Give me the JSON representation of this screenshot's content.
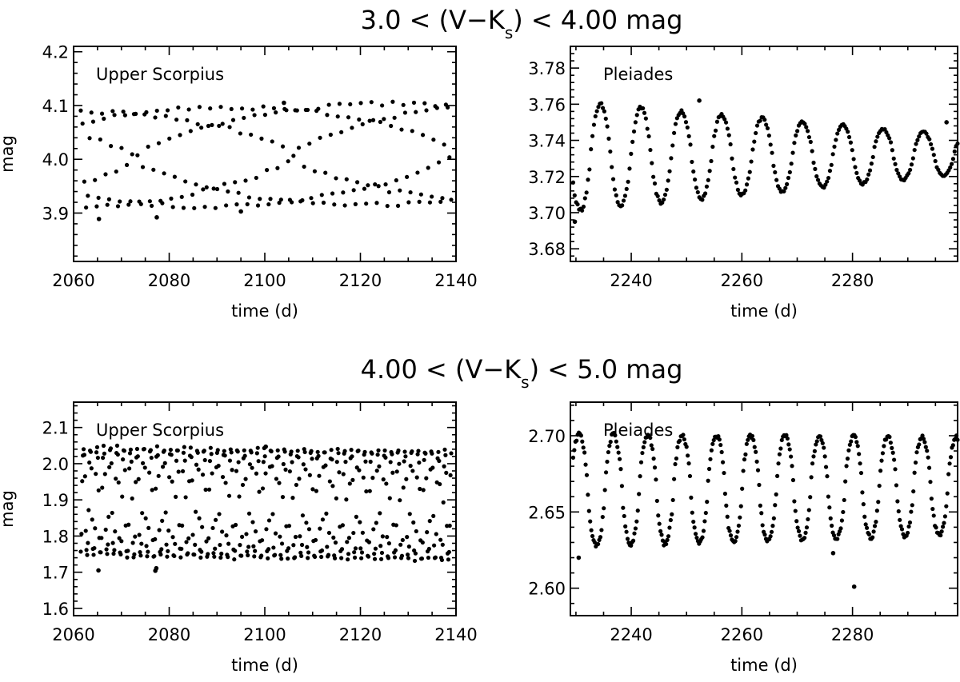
{
  "row_titles": [
    {
      "pre": "3.0 < (V−K",
      "sub": "s",
      "post": ") < 4.00 mag"
    },
    {
      "pre": "4.00 < (V−K",
      "sub": "s",
      "post": ") < 5.0 mag"
    }
  ],
  "chart_data": [
    {
      "type": "scatter",
      "title": "Upper Scorpius",
      "xlabel": "time (d)",
      "ylabel": "mag",
      "xlim": [
        2060,
        2140
      ],
      "ylim": [
        3.81,
        4.21
      ],
      "xticks": [
        2060,
        2080,
        2100,
        2120,
        2140
      ],
      "xtick_labels": [
        "2060",
        "2080",
        "2100",
        "2120",
        "2140"
      ],
      "yticks": [
        3.9,
        4.0,
        4.1,
        4.2
      ],
      "ytick_labels": [
        "3.9",
        "4.0",
        "4.1",
        "4.2"
      ],
      "pattern": {
        "t_start": 2061.5,
        "t_end": 2139,
        "n": 210,
        "center_start": 4.0,
        "center_end": 4.012,
        "amp_start": 0.09,
        "amp_end": 0.095,
        "period": 2.25,
        "bias": 0.6
      },
      "extra_points": [
        [
          2065.3,
          3.889
        ],
        [
          2077.4,
          3.892
        ],
        [
          2095.0,
          3.903
        ],
        [
          2104.0,
          4.105
        ]
      ]
    },
    {
      "type": "scatter",
      "title": "Pleiades",
      "xlabel": "time (d)",
      "ylabel": "",
      "xlim": [
        2229,
        2299
      ],
      "ylim": [
        3.673,
        3.792
      ],
      "xticks": [
        2240,
        2260,
        2280
      ],
      "xtick_labels": [
        "2240",
        "2260",
        "2280"
      ],
      "yticks": [
        3.68,
        3.7,
        3.72,
        3.74,
        3.76,
        3.78
      ],
      "ytick_labels": [
        "3.68",
        "3.70",
        "3.72",
        "3.74",
        "3.76",
        "3.78"
      ],
      "pattern": {
        "t_start": 2229.5,
        "t_end": 2299,
        "n": 260,
        "center_start": 3.731,
        "center_end": 3.732,
        "amp_start": 0.03,
        "amp_end": 0.011,
        "period": 7.3,
        "bias": 0.3
      },
      "extra_points": [
        [
          2229.8,
          3.695
        ],
        [
          2252.3,
          3.762
        ],
        [
          2297.0,
          3.75
        ]
      ]
    },
    {
      "type": "scatter",
      "title": "Upper Scorpius",
      "xlabel": "time (d)",
      "ylabel": "mag",
      "xlim": [
        2060,
        2140
      ],
      "ylim": [
        1.58,
        2.17
      ],
      "xticks": [
        2060,
        2080,
        2100,
        2120,
        2140
      ],
      "xtick_labels": [
        "2060",
        "2080",
        "2100",
        "2120",
        "2140"
      ],
      "yticks": [
        1.6,
        1.7,
        1.8,
        1.9,
        2.0,
        2.1
      ],
      "ytick_labels": [
        "1.6",
        "1.7",
        "1.8",
        "1.9",
        "2.0",
        "2.1"
      ],
      "pattern": {
        "t_start": 2061.5,
        "t_end": 2139,
        "n": 520,
        "center_start": 1.895,
        "center_end": 1.885,
        "amp_start": 0.15,
        "amp_end": 0.15,
        "period": 1.4,
        "bias": 0.65
      },
      "extra_points": [
        [
          2065.2,
          1.705
        ],
        [
          2077.1,
          1.704
        ],
        [
          2077.3,
          1.711
        ],
        [
          2100.2,
          2.047
        ]
      ]
    },
    {
      "type": "scatter",
      "title": "Pleiades",
      "xlabel": "time (d)",
      "ylabel": "",
      "xlim": [
        2229,
        2299
      ],
      "ylim": [
        2.582,
        2.722
      ],
      "xticks": [
        2240,
        2260,
        2280
      ],
      "xtick_labels": [
        "2240",
        "2260",
        "2280"
      ],
      "yticks": [
        2.6,
        2.65,
        2.7
      ],
      "ytick_labels": [
        "2.60",
        "2.65",
        "2.70"
      ],
      "pattern": {
        "t_start": 2229.5,
        "t_end": 2299,
        "n": 340,
        "center_start": 2.664,
        "center_end": 2.667,
        "amp_start": 0.037,
        "amp_end": 0.032,
        "period": 6.2,
        "bias": 0.45
      },
      "extra_points": [
        [
          2230.5,
          2.62
        ],
        [
          2280.3,
          2.601
        ],
        [
          2276.5,
          2.623
        ]
      ]
    }
  ]
}
